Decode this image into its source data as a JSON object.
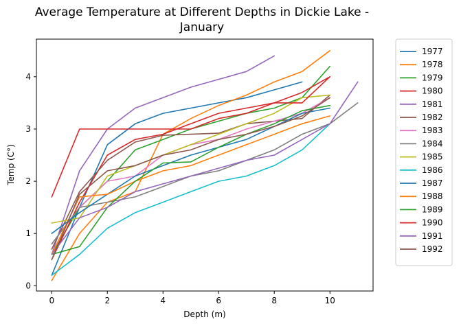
{
  "chart_data": {
    "type": "line",
    "title": "Average Temperature at Different Depths in Dickie Lake - January",
    "title_lines": [
      "Average Temperature at Different Depths in Dickie Lake -",
      "January"
    ],
    "xlabel": "Depth (m)",
    "ylabel": "Temp (C°)",
    "xlim": [
      -0.55,
      11.55
    ],
    "ylim": [
      -0.1,
      4.72
    ],
    "xticks": [
      0,
      2,
      4,
      6,
      8,
      10
    ],
    "yticks": [
      0,
      1,
      2,
      3,
      4
    ],
    "grid": false,
    "legend_position": "outside-right",
    "series": [
      {
        "name": "1977",
        "color": "#1f77b4",
        "x": [
          0,
          1,
          2,
          3,
          4,
          5,
          6,
          7,
          8,
          9
        ],
        "y": [
          0.2,
          1.5,
          2.7,
          3.1,
          3.3,
          3.4,
          3.5,
          3.6,
          3.75,
          3.9
        ]
      },
      {
        "name": "1978",
        "color": "#ff7f0e",
        "x": [
          0,
          1,
          2,
          3,
          4,
          5,
          6,
          7,
          8,
          9,
          10
        ],
        "y": [
          0.1,
          1.0,
          1.6,
          1.8,
          2.9,
          3.2,
          3.45,
          3.65,
          3.9,
          4.1,
          4.5
        ]
      },
      {
        "name": "1979",
        "color": "#2ca02c",
        "x": [
          0,
          1,
          2,
          3,
          4,
          5,
          6,
          7,
          8,
          9,
          10
        ],
        "y": [
          0.6,
          1.5,
          2.0,
          2.6,
          2.8,
          3.0,
          3.15,
          3.3,
          3.4,
          3.6,
          4.2
        ]
      },
      {
        "name": "1980",
        "color": "#d62728",
        "x": [
          0,
          1,
          2,
          3,
          4,
          5,
          6,
          7,
          8,
          9,
          10
        ],
        "y": [
          0.5,
          1.6,
          2.5,
          2.8,
          2.9,
          3.1,
          3.3,
          3.4,
          3.5,
          3.7,
          4.0
        ]
      },
      {
        "name": "1981",
        "color": "#9467bd",
        "x": [
          0,
          1,
          2,
          3,
          4,
          5,
          6,
          7,
          8,
          9,
          10
        ],
        "y": [
          0.6,
          2.2,
          3.0,
          3.4,
          3.6,
          3.8,
          3.95,
          4.1,
          4.4,
          null,
          null
        ]
      },
      {
        "name": "1982",
        "color": "#8c564b",
        "x": [
          0,
          1,
          2,
          3,
          4,
          5,
          6,
          7,
          8,
          9,
          10
        ],
        "y": [
          0.7,
          1.8,
          2.4,
          2.75,
          2.88,
          2.9,
          2.92,
          3.1,
          3.15,
          3.2,
          3.65
        ]
      },
      {
        "name": "1983",
        "color": "#e377c2",
        "x": [
          0,
          1,
          2,
          3,
          4,
          5,
          6,
          7,
          8,
          9,
          10
        ],
        "y": [
          0.8,
          1.5,
          2.0,
          2.1,
          2.5,
          2.7,
          2.8,
          3.0,
          3.15,
          3.3,
          3.6
        ]
      },
      {
        "name": "1984",
        "color": "#7f7f7f",
        "x": [
          0,
          1,
          2,
          3,
          4,
          5,
          6,
          7,
          8,
          9,
          10,
          11
        ],
        "y": [
          0.8,
          1.5,
          1.6,
          1.7,
          1.9,
          2.1,
          2.2,
          2.4,
          2.6,
          2.9,
          3.1,
          3.5
        ]
      },
      {
        "name": "1985",
        "color": "#bcbd22",
        "x": [
          0,
          1,
          2,
          3,
          4,
          5,
          6,
          7,
          8,
          9,
          10
        ],
        "y": [
          1.2,
          1.3,
          2.1,
          2.3,
          2.5,
          2.7,
          2.9,
          3.1,
          3.3,
          3.6,
          3.65
        ]
      },
      {
        "name": "1986",
        "color": "#17becf",
        "x": [
          0,
          1,
          2,
          3,
          4,
          5,
          6,
          7,
          8,
          9,
          10
        ],
        "y": [
          0.2,
          0.6,
          1.1,
          1.4,
          1.6,
          1.8,
          2.0,
          2.1,
          2.3,
          2.6,
          3.1
        ]
      },
      {
        "name": "1987",
        "color": "#1f77b4",
        "x": [
          0,
          1,
          2,
          3,
          4,
          5,
          6,
          7,
          8,
          9,
          10
        ],
        "y": [
          1.0,
          1.4,
          1.75,
          2.1,
          2.3,
          2.5,
          2.65,
          2.8,
          3.05,
          3.3,
          3.4
        ]
      },
      {
        "name": "1988",
        "color": "#ff7f0e",
        "x": [
          0,
          1,
          2,
          3,
          4,
          5,
          6,
          7,
          8,
          9,
          10
        ],
        "y": [
          0.6,
          1.7,
          1.75,
          2.0,
          2.2,
          2.3,
          2.5,
          2.7,
          2.9,
          3.1,
          3.25
        ]
      },
      {
        "name": "1989",
        "color": "#2ca02c",
        "x": [
          0,
          1,
          2,
          3,
          4,
          5,
          6,
          7,
          8,
          9,
          10
        ],
        "y": [
          0.6,
          0.75,
          1.5,
          2.0,
          2.35,
          2.37,
          2.65,
          2.9,
          3.1,
          3.35,
          3.45
        ]
      },
      {
        "name": "1990",
        "color": "#d62728",
        "x": [
          0,
          1,
          2,
          3,
          4,
          5,
          6,
          7,
          8,
          9,
          10
        ],
        "y": [
          1.7,
          3.0,
          3.0,
          3.0,
          3.0,
          3.0,
          3.2,
          3.3,
          3.5,
          3.5,
          4.0
        ]
      },
      {
        "name": "1991",
        "color": "#9467bd",
        "x": [
          0,
          1,
          2,
          3,
          4,
          5,
          6,
          7,
          8,
          9,
          10,
          11
        ],
        "y": [
          0.6,
          1.3,
          1.5,
          1.8,
          1.95,
          2.1,
          2.25,
          2.4,
          2.5,
          2.8,
          3.1,
          3.9
        ]
      },
      {
        "name": "1992",
        "color": "#8c564b",
        "x": [
          0,
          1,
          2,
          3,
          4,
          5,
          6,
          7,
          8,
          9,
          10
        ],
        "y": [
          0.5,
          1.75,
          2.2,
          2.3,
          2.5,
          2.6,
          2.8,
          2.9,
          3.05,
          3.25,
          3.6
        ]
      }
    ]
  }
}
